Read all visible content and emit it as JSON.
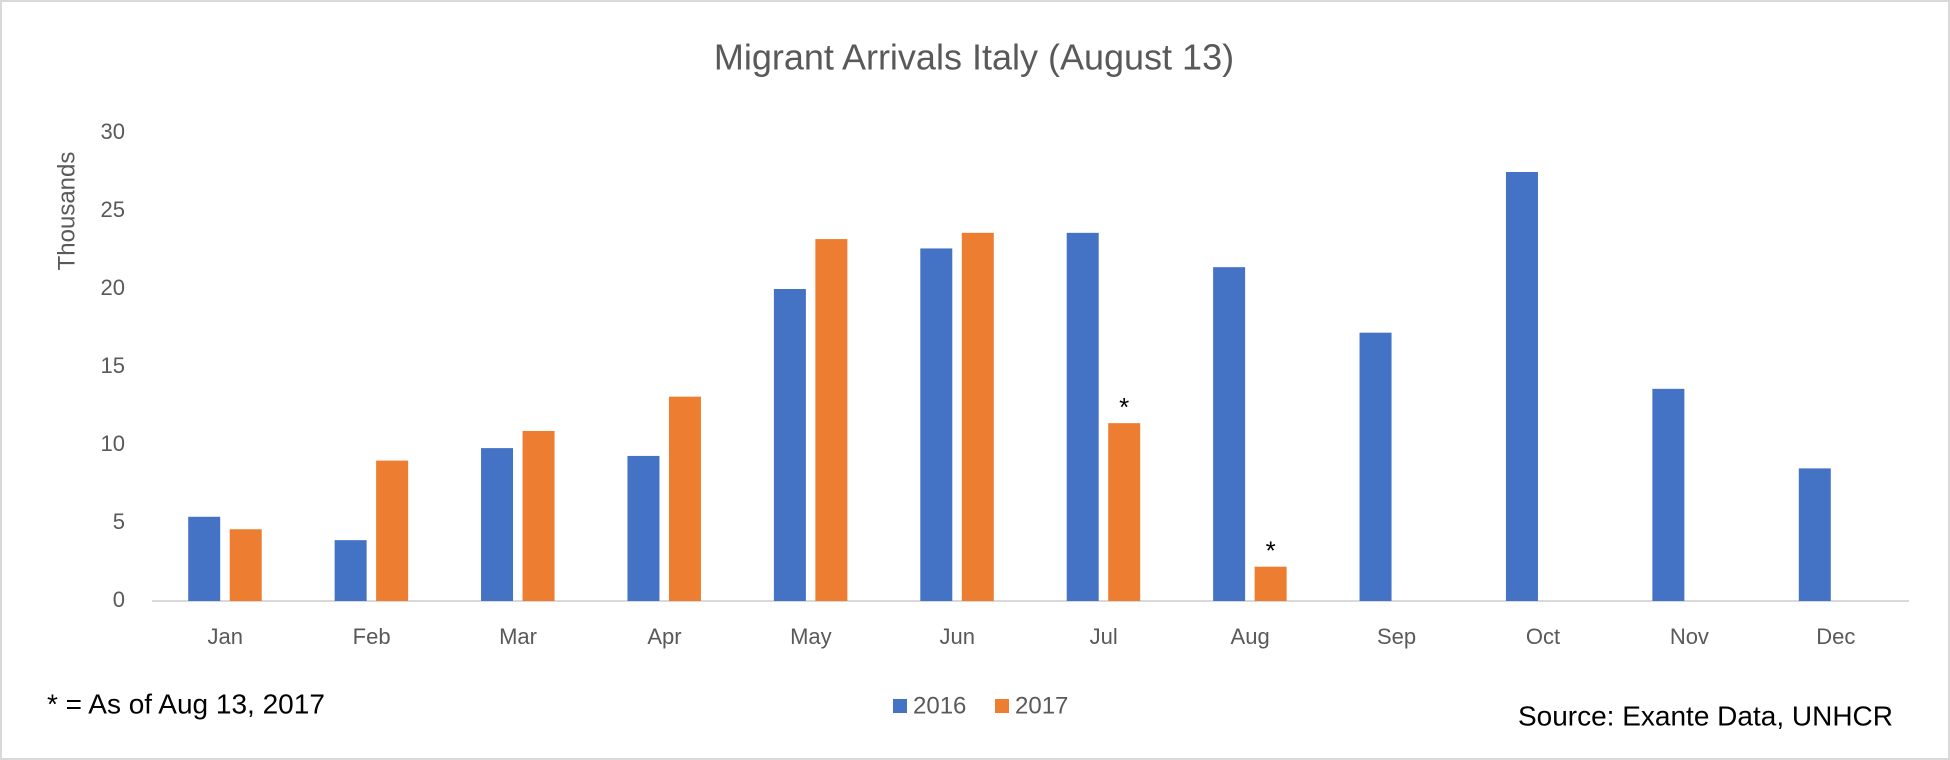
{
  "chart_data": {
    "type": "bar",
    "title": "Migrant Arrivals Italy  (August 13)",
    "y_label": "Thousands",
    "categories": [
      "Jan",
      "Feb",
      "Mar",
      "Apr",
      "May",
      "Jun",
      "Jul",
      "Aug",
      "Sep",
      "Oct",
      "Nov",
      "Dec"
    ],
    "series": [
      {
        "name": "2016",
        "color": "#4472c4",
        "values": [
          5.4,
          3.9,
          9.8,
          9.3,
          20.0,
          22.6,
          23.6,
          21.4,
          17.2,
          27.5,
          13.6,
          8.5
        ]
      },
      {
        "name": "2017",
        "color": "#ed7d31",
        "values": [
          4.6,
          9.0,
          10.9,
          13.1,
          23.2,
          23.6,
          11.4,
          2.2,
          null,
          null,
          null,
          null
        ]
      }
    ],
    "annotations": [
      {
        "text": "*",
        "x": "Jul"
      },
      {
        "text": "*",
        "x": "Aug"
      }
    ],
    "ylim": [
      0,
      30
    ],
    "yticks": [
      0,
      5,
      10,
      15,
      20,
      25,
      30
    ],
    "grid": false,
    "legend": "bottom",
    "footnote": "* = As of Aug 13, 2017",
    "source": "Source: Exante Data, UNHCR"
  }
}
